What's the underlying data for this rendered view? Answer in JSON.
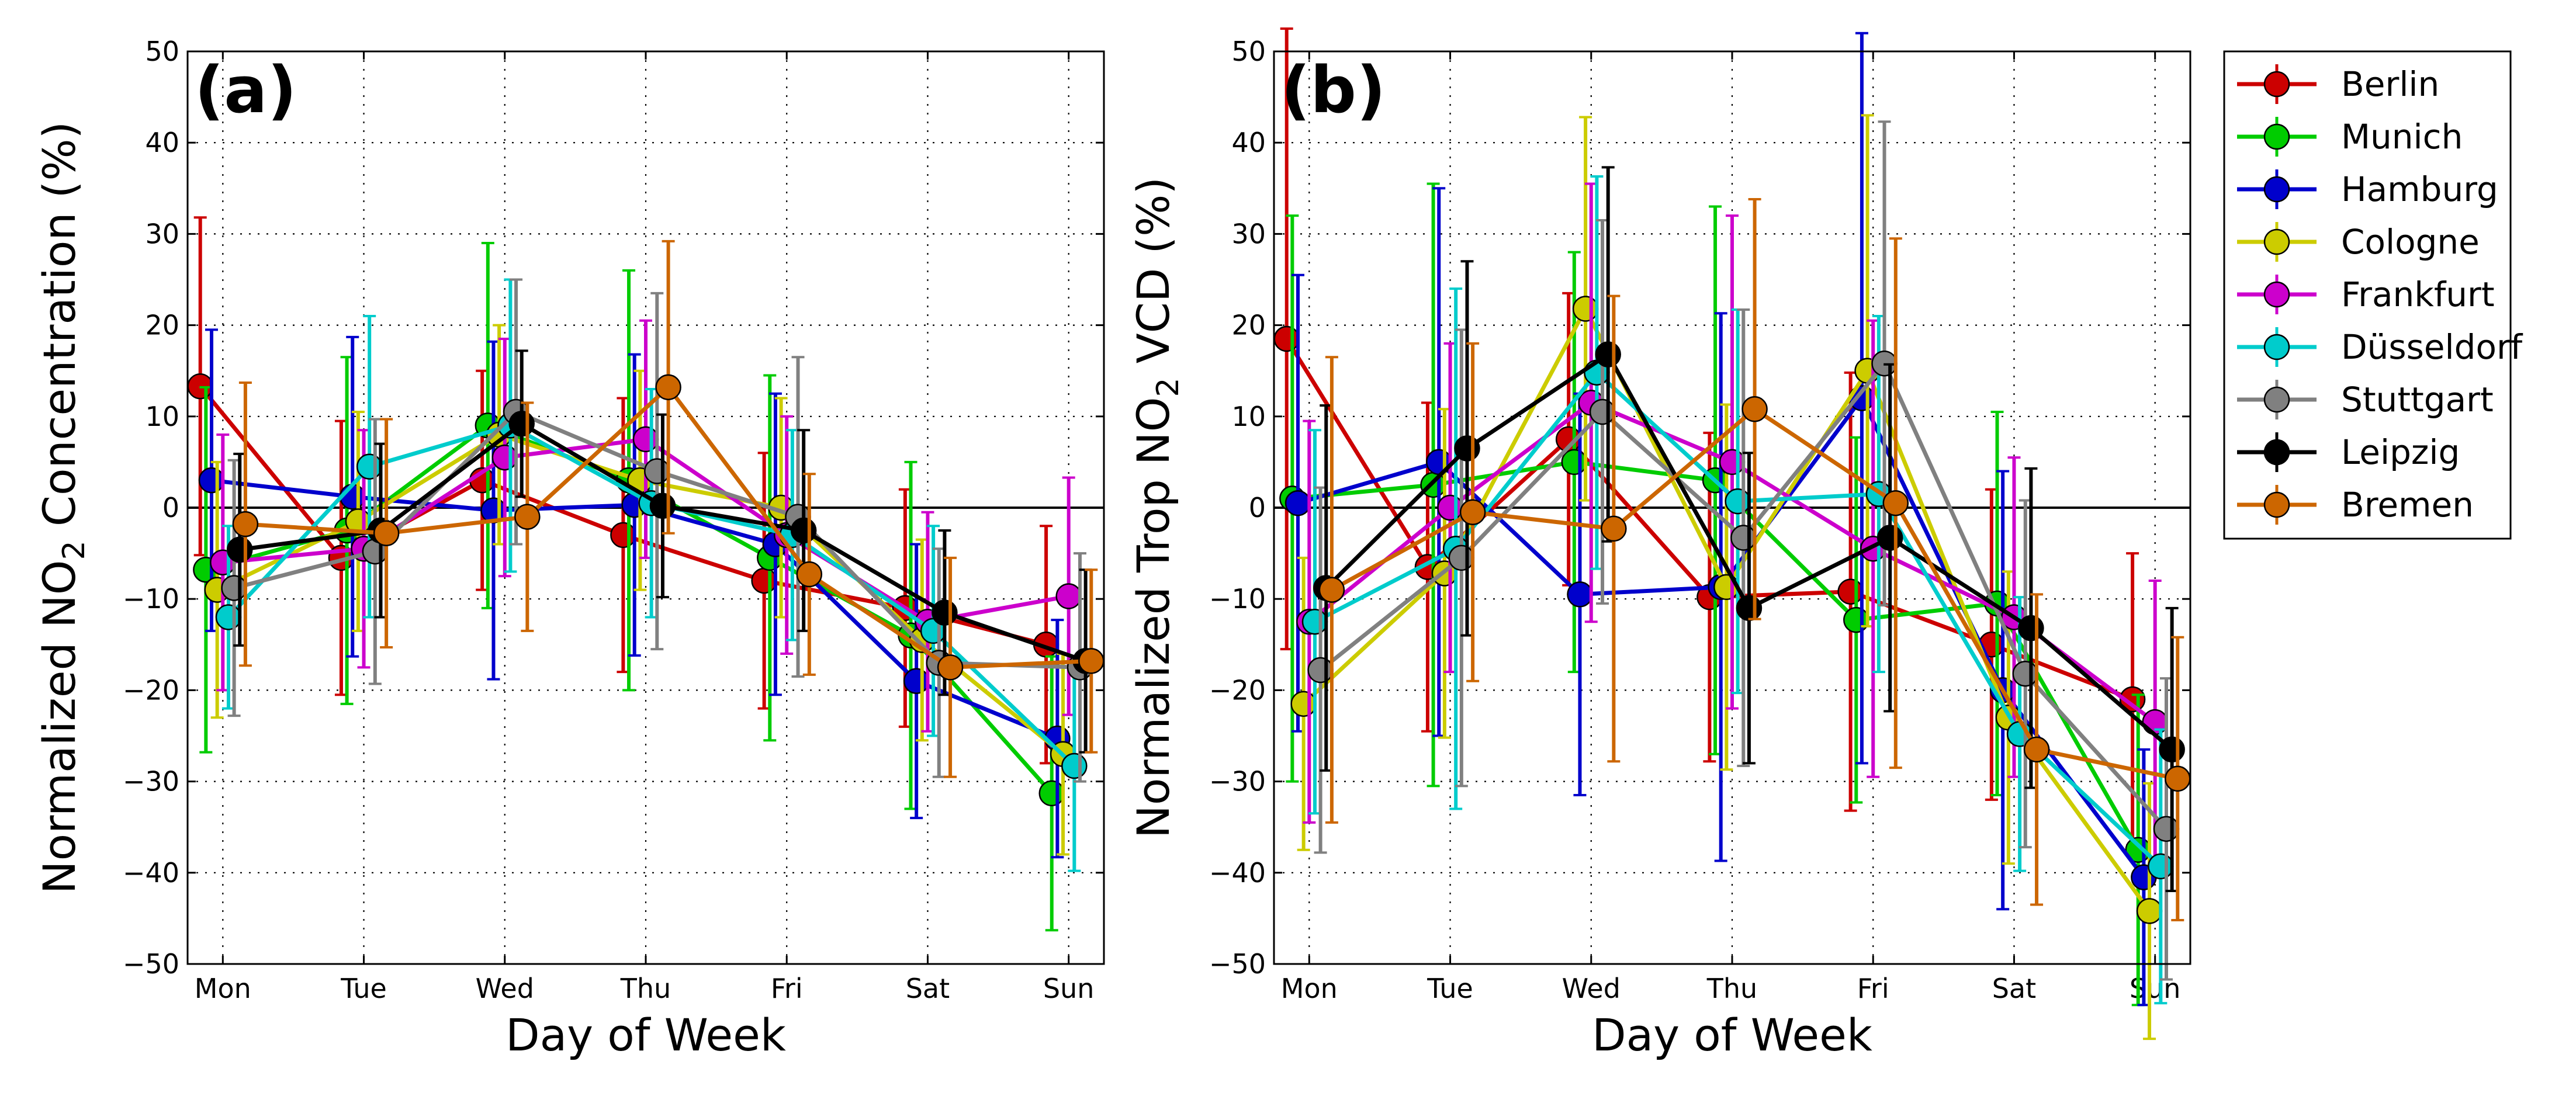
{
  "figure": {
    "x_axis_label": "Day of Week"
  },
  "legend": {
    "entries": [
      {
        "name": "Berlin",
        "color": "#cc0000"
      },
      {
        "name": "Munich",
        "color": "#00cc00"
      },
      {
        "name": "Hamburg",
        "color": "#0000cc"
      },
      {
        "name": "Cologne",
        "color": "#cccc00"
      },
      {
        "name": "Frankfurt",
        "color": "#cc00cc"
      },
      {
        "name": "Düsseldorf",
        "color": "#00cccc"
      },
      {
        "name": "Stuttgart",
        "color": "#808080"
      },
      {
        "name": "Leipzig",
        "color": "#000000"
      },
      {
        "name": "Bremen",
        "color": "#cc6600"
      }
    ]
  },
  "chart_data": [
    {
      "type": "line",
      "panel": "(a)",
      "xlabel": "Day of Week",
      "ylabel_parts": [
        "Normalized NO",
        "2",
        " Concentration (%)"
      ],
      "categories": [
        "Mon",
        "Tue",
        "Wed",
        "Thu",
        "Fri",
        "Sat",
        "Sun"
      ],
      "ylim": [
        -50,
        50
      ],
      "yticks": [
        -50,
        -40,
        -30,
        -20,
        -10,
        0,
        10,
        20,
        30,
        40,
        50
      ],
      "grid": true,
      "offset_step": 0.04,
      "series": [
        {
          "name": "Berlin",
          "values": [
            13.3,
            -5.5,
            3.0,
            -3.0,
            -8.0,
            -11.0,
            -15.0
          ],
          "err": [
            18.5,
            15,
            12,
            15,
            14,
            13,
            13
          ]
        },
        {
          "name": "Munich",
          "values": [
            -6.8,
            -2.5,
            9.0,
            3.0,
            -5.5,
            -14.0,
            -31.3
          ],
          "err": [
            20,
            19,
            20,
            23,
            20,
            19,
            15
          ]
        },
        {
          "name": "Hamburg",
          "values": [
            3.0,
            1.2,
            -0.3,
            0.3,
            -4.0,
            -19.0,
            -25.3
          ],
          "err": [
            16.5,
            17.5,
            18.5,
            16.5,
            16.5,
            15,
            13
          ]
        },
        {
          "name": "Cologne",
          "values": [
            -9.0,
            -1.5,
            8.0,
            3.0,
            0.0,
            -14.5,
            -27.0
          ],
          "err": [
            14,
            12,
            12,
            12,
            12,
            11,
            11
          ]
        },
        {
          "name": "Frankfurt",
          "values": [
            -6.0,
            -4.5,
            5.5,
            7.5,
            -3.0,
            -12.5,
            -9.7
          ],
          "err": [
            14,
            13,
            13,
            13,
            13,
            12,
            13
          ]
        },
        {
          "name": "Düsseldorf",
          "values": [
            -12.0,
            4.5,
            9.0,
            0.5,
            -3.0,
            -13.5,
            -28.3
          ],
          "err": [
            10,
            16.5,
            16,
            12.5,
            11.5,
            11.5,
            11.5
          ]
        },
        {
          "name": "Stuttgart",
          "values": [
            -8.8,
            -4.8,
            10.5,
            4.0,
            -1.0,
            -17.0,
            -17.5
          ],
          "err": [
            14,
            14.5,
            14.5,
            19.5,
            17.5,
            12.5,
            12.5
          ]
        },
        {
          "name": "Leipzig",
          "values": [
            -4.6,
            -2.5,
            9.2,
            0.2,
            -2.5,
            -11.5,
            -16.8
          ],
          "err": [
            10.5,
            9.5,
            8,
            10,
            11,
            9,
            10
          ]
        },
        {
          "name": "Bremen",
          "values": [
            -1.8,
            -2.8,
            -1.0,
            13.2,
            -7.3,
            -17.5,
            -16.8
          ],
          "err": [
            15.5,
            12.5,
            12.5,
            16,
            11,
            12,
            10
          ]
        }
      ]
    },
    {
      "type": "line",
      "panel": "(b)",
      "xlabel": "Day of Week",
      "ylabel_parts": [
        "Normalized Trop NO",
        "2",
        " VCD (%)"
      ],
      "categories": [
        "Mon",
        "Tue",
        "Wed",
        "Thu",
        "Fri",
        "Sat",
        "Sun"
      ],
      "ylim": [
        -50,
        50
      ],
      "yticks": [
        -50,
        -40,
        -30,
        -20,
        -10,
        0,
        10,
        20,
        30,
        40,
        50
      ],
      "grid": true,
      "offset_step": 0.04,
      "series": [
        {
          "name": "Berlin",
          "values": [
            18.5,
            -6.5,
            7.5,
            -9.8,
            -9.2,
            -15.0,
            -21.0
          ],
          "err": [
            34,
            18,
            16,
            18,
            24,
            17,
            16
          ]
        },
        {
          "name": "Munich",
          "values": [
            1.0,
            2.5,
            5.0,
            3.0,
            -12.3,
            -10.5,
            -37.5
          ],
          "err": [
            31,
            33,
            23,
            30,
            20,
            21,
            17
          ]
        },
        {
          "name": "Hamburg",
          "values": [
            0.5,
            5.0,
            -9.5,
            -8.7,
            12.0,
            -20.0,
            -40.5
          ],
          "err": [
            25,
            30,
            22,
            30,
            40,
            24,
            14
          ]
        },
        {
          "name": "Cologne",
          "values": [
            -21.5,
            -7.2,
            21.8,
            -8.7,
            15.0,
            -23.0,
            -44.2
          ],
          "err": [
            16,
            18,
            21,
            20,
            28,
            16,
            14
          ]
        },
        {
          "name": "Frankfurt",
          "values": [
            -12.5,
            0.0,
            11.5,
            5.0,
            -4.5,
            -12.0,
            -23.5
          ],
          "err": [
            22,
            18,
            24,
            27,
            25,
            17.5,
            15.5
          ]
        },
        {
          "name": "Düsseldorf",
          "values": [
            -12.5,
            -4.5,
            14.8,
            0.7,
            1.5,
            -24.8,
            -39.3
          ],
          "err": [
            21,
            28.5,
            21.5,
            21,
            19.5,
            15,
            15
          ]
        },
        {
          "name": "Stuttgart",
          "values": [
            -17.8,
            -5.5,
            10.5,
            -3.3,
            15.8,
            -18.2,
            -35.2
          ],
          "err": [
            20,
            25,
            21,
            25,
            26.5,
            19,
            16.5
          ]
        },
        {
          "name": "Leipzig",
          "values": [
            -8.8,
            6.5,
            16.8,
            -11.0,
            -3.3,
            -13.2,
            -26.5
          ],
          "err": [
            20,
            20.5,
            20.5,
            17,
            19,
            17.5,
            15.5
          ]
        },
        {
          "name": "Bremen",
          "values": [
            -9.0,
            -0.5,
            -2.3,
            10.8,
            0.5,
            -26.5,
            -29.7
          ],
          "err": [
            25.5,
            18.5,
            25.5,
            23,
            29,
            17,
            15.5
          ]
        }
      ]
    }
  ]
}
